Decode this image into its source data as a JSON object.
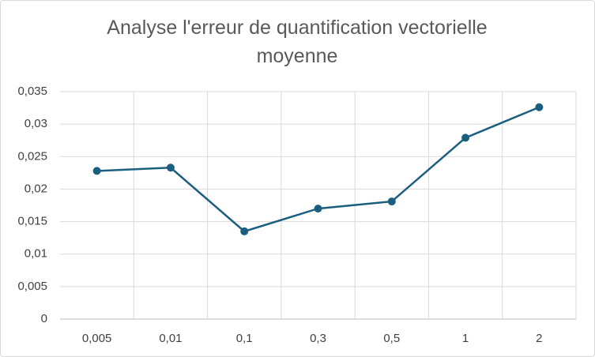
{
  "chart_data": {
    "type": "line",
    "title": "Analyse l'erreur de quantification vectorielle moyenne",
    "categories": [
      "0,005",
      "0,01",
      "0,1",
      "0,3",
      "0,5",
      "1",
      "2"
    ],
    "values": [
      0.0228,
      0.0233,
      0.0135,
      0.017,
      0.0181,
      0.0279,
      0.0326
    ],
    "color": "#1b5e80",
    "ylim": [
      0,
      0.035
    ],
    "yticks": [
      0,
      {
        "value": 0.005,
        "label": "0,005"
      },
      {
        "value": 0.01,
        "label": "0,01"
      },
      {
        "value": 0.015,
        "label": "0,015"
      },
      {
        "value": 0.02,
        "label": "0,02"
      },
      {
        "value": 0.025,
        "label": "0,025"
      },
      {
        "value": 0.03,
        "label": "0,03"
      },
      {
        "value": 0.035,
        "label": "0,035"
      }
    ],
    "grid": true
  }
}
